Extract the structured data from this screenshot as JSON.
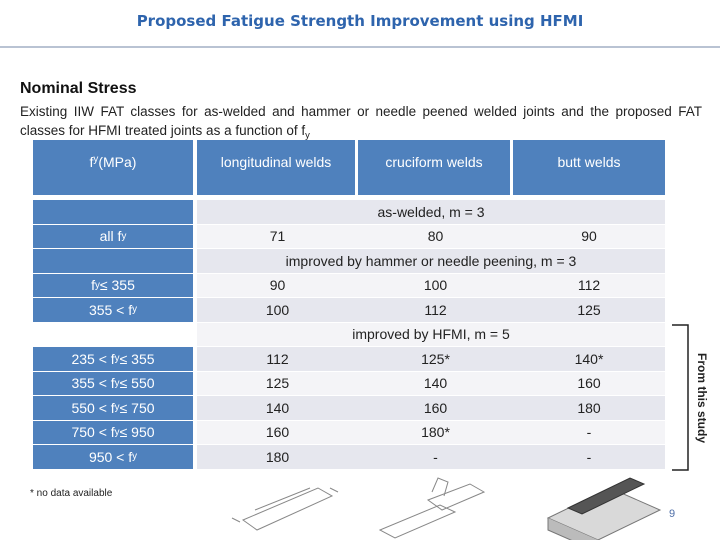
{
  "header": {
    "title": "Proposed Fatigue Strength Improvement using HFMI"
  },
  "section": {
    "heading": "Nominal Stress",
    "text": [
      "Existing IIW FAT classes for as-welded and hammer or needle peened welded joints and the proposed FAT classes for HFMI treated joints as a function of f",
      "y"
    ]
  },
  "table": {
    "corner": [
      "f",
      "y",
      " (MPa)"
    ],
    "columns": [
      "longitudinal welds",
      "cruciform welds",
      "butt welds"
    ],
    "rows": [
      {
        "span": "as-welded, m = 3"
      },
      {
        "label": [
          "all f",
          "y"
        ],
        "cells": [
          "71",
          "80",
          "90"
        ]
      },
      {
        "span": "improved by hammer or needle peening, m = 3"
      },
      {
        "label": [
          "f",
          "y",
          " ≤ 355"
        ],
        "cells": [
          "90",
          "100",
          "112"
        ]
      },
      {
        "label": [
          "355 < f",
          "y"
        ],
        "cells": [
          "100",
          "112",
          "125"
        ]
      },
      {
        "span": "improved by HFMI, m = 5"
      },
      {
        "label": [
          "235 < f",
          "y",
          " ≤ 355"
        ],
        "cells": [
          "112",
          "125*",
          "140*"
        ]
      },
      {
        "label": [
          "355 < f",
          "y",
          " ≤ 550"
        ],
        "cells": [
          "125",
          "140",
          "160"
        ]
      },
      {
        "label": [
          "550 < f",
          "y",
          " ≤ 750"
        ],
        "cells": [
          "140",
          "160",
          "180"
        ]
      },
      {
        "label": [
          "750 < f",
          "y",
          " ≤ 950"
        ],
        "cells": [
          "160",
          "180*",
          "-"
        ]
      },
      {
        "label": [
          "950 < f",
          "y"
        ],
        "cells": [
          "180",
          "-",
          "-"
        ]
      }
    ],
    "bracket_label": "From this study"
  },
  "footnote": "* no data available",
  "page_number": "9"
}
